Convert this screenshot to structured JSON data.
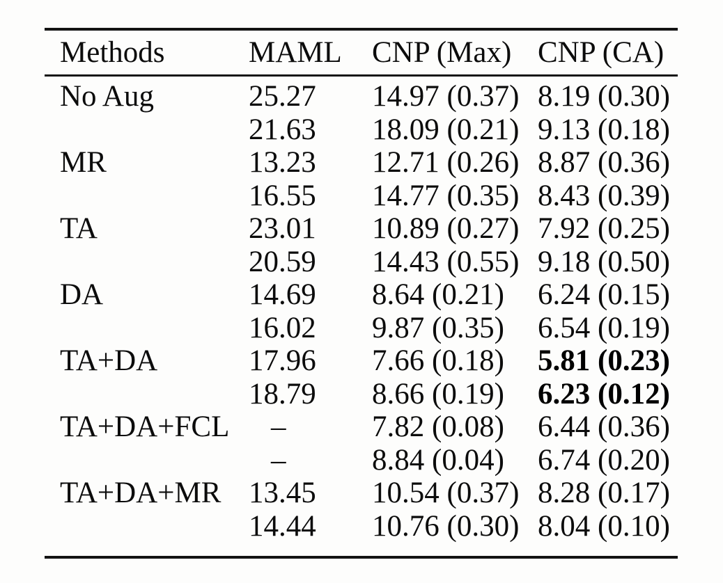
{
  "page": {
    "kind": "paper-results-table"
  },
  "colors": {
    "background": "#fdfdfc",
    "text": "#0c0c0c",
    "rule": "#131313",
    "bold_text": "#000000"
  },
  "table": {
    "columns": [
      "Methods",
      "MAML",
      "CNP (Max)",
      "CNP (CA)"
    ],
    "rows": [
      {
        "method": "No Aug",
        "maml": "25.27",
        "cnp_max": "14.97 (0.37)",
        "cnp_ca": "8.19 (0.30)",
        "cnp_ca_bold": false
      },
      {
        "method": "",
        "maml": "21.63",
        "cnp_max": "18.09 (0.21)",
        "cnp_ca": "9.13 (0.18)",
        "cnp_ca_bold": false
      },
      {
        "method": "MR",
        "maml": "13.23",
        "cnp_max": "12.71 (0.26)",
        "cnp_ca": "8.87 (0.36)",
        "cnp_ca_bold": false
      },
      {
        "method": "",
        "maml": "16.55",
        "cnp_max": "14.77 (0.35)",
        "cnp_ca": "8.43 (0.39)",
        "cnp_ca_bold": false
      },
      {
        "method": "TA",
        "maml": "23.01",
        "cnp_max": "10.89 (0.27)",
        "cnp_ca": "7.92 (0.25)",
        "cnp_ca_bold": false
      },
      {
        "method": "",
        "maml": "20.59",
        "cnp_max": "14.43 (0.55)",
        "cnp_ca": "9.18 (0.50)",
        "cnp_ca_bold": false
      },
      {
        "method": "DA",
        "maml": "14.69",
        "cnp_max": "8.64 (0.21)",
        "cnp_ca": "6.24 (0.15)",
        "cnp_ca_bold": false
      },
      {
        "method": "",
        "maml": "16.02",
        "cnp_max": "9.87 (0.35)",
        "cnp_ca": "6.54 (0.19)",
        "cnp_ca_bold": false
      },
      {
        "method": "TA+DA",
        "maml": "17.96",
        "cnp_max": "7.66 (0.18)",
        "cnp_ca": "5.81 (0.23)",
        "cnp_ca_bold": true
      },
      {
        "method": "",
        "maml": "18.79",
        "cnp_max": "8.66 (0.19)",
        "cnp_ca": "6.23 (0.12)",
        "cnp_ca_bold": true
      },
      {
        "method": "TA+DA+FCL",
        "maml": "–",
        "cnp_max": "7.82 (0.08)",
        "cnp_ca": "6.44 (0.36)",
        "cnp_ca_bold": false
      },
      {
        "method": "",
        "maml": "–",
        "cnp_max": "8.84 (0.04)",
        "cnp_ca": "6.74 (0.20)",
        "cnp_ca_bold": false
      },
      {
        "method": "TA+DA+MR",
        "maml": "13.45",
        "cnp_max": "10.54 (0.37)",
        "cnp_ca": "8.28 (0.17)",
        "cnp_ca_bold": false
      },
      {
        "method": "",
        "maml": "14.44",
        "cnp_max": "10.76 (0.30)",
        "cnp_ca": "8.04 (0.10)",
        "cnp_ca_bold": false
      }
    ]
  }
}
